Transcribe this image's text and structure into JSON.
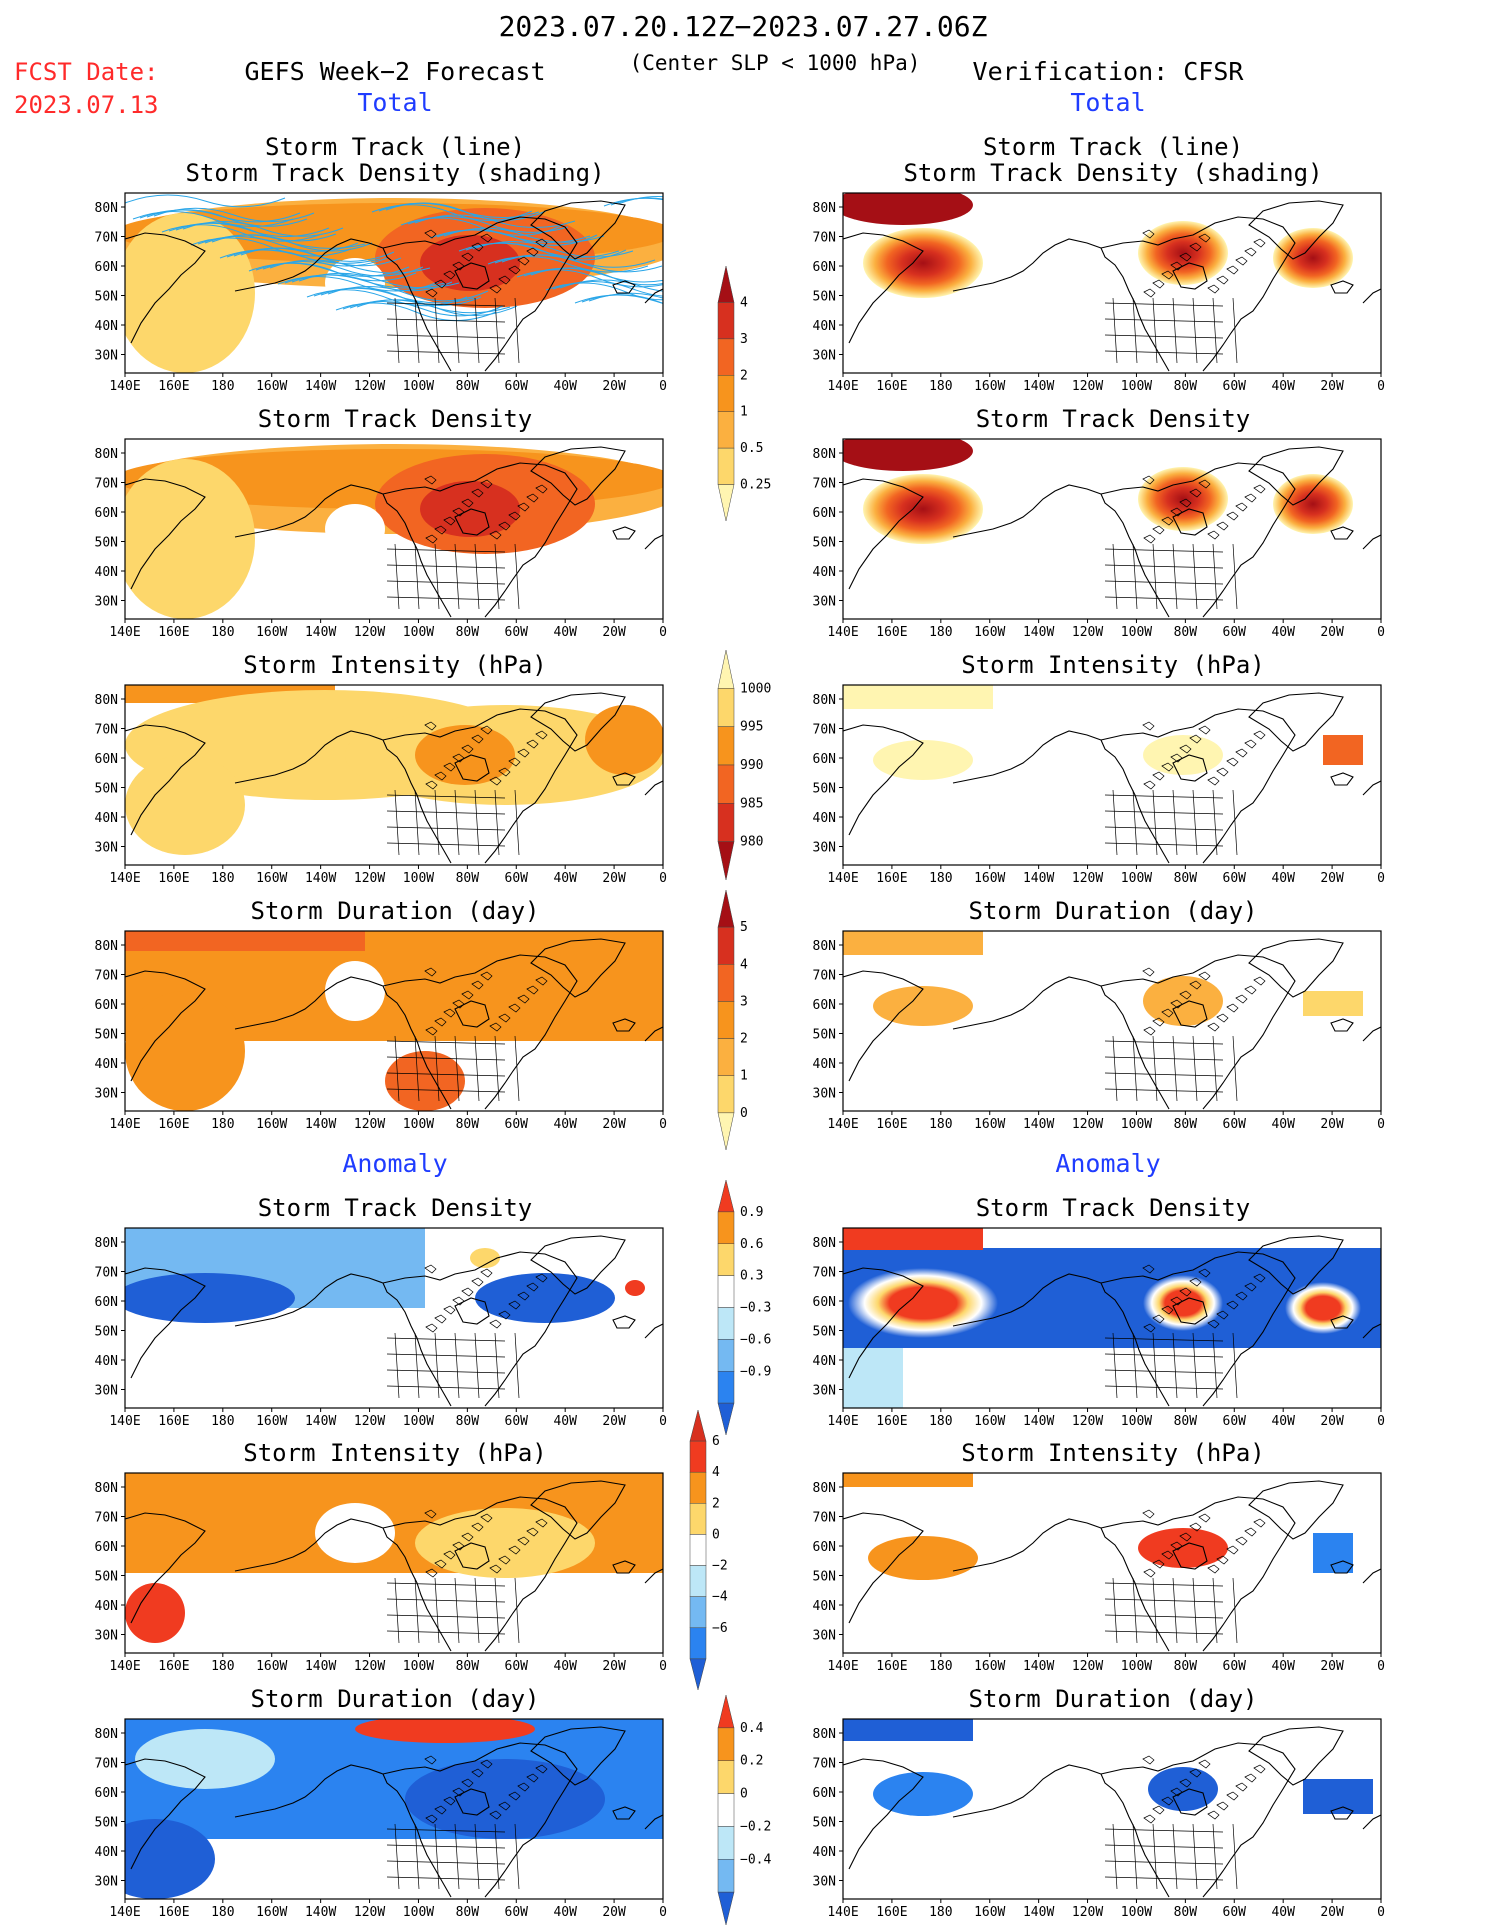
{
  "header": {
    "period": "2023.07.20.12Z−2023.07.27.06Z",
    "criterion": "(Center SLP < 1000 hPa)",
    "fcst_label": "FCST Date:",
    "fcst_date": "2023.07.13",
    "forecast_title": "GEFS Week−2 Forecast",
    "verification_title": "Verification: CFSR",
    "total_label": "Total",
    "anomaly_label": "Anomaly"
  },
  "panel_titles": {
    "track_line": "Storm Track (line)",
    "track_density_shading": "Storm Track Density (shading)",
    "density": "Storm Track Density",
    "intensity": "Storm Intensity (hPa)",
    "duration": "Storm Duration (day)"
  },
  "axes": {
    "lon_labels": [
      "140E",
      "160E",
      "180",
      "160W",
      "140W",
      "120W",
      "100W",
      "80W",
      "60W",
      "40W",
      "20W",
      "0"
    ],
    "lat_labels": [
      "80N",
      "70N",
      "60N",
      "50N",
      "40N",
      "30N"
    ]
  },
  "colorbars": {
    "density_total": {
      "labels": [
        "4",
        "3",
        "2",
        "1",
        "0.5",
        "0.25"
      ],
      "colors": [
        "#a50f15",
        "#d7301f",
        "#f26522",
        "#f7941d",
        "#fbb040",
        "#fdd76b",
        "#fff5b1"
      ]
    },
    "intensity_total": {
      "labels": [
        "1000",
        "995",
        "990",
        "985",
        "980"
      ],
      "colors": [
        "#fff5b1",
        "#fdd76b",
        "#f7941d",
        "#f26522",
        "#d7301f",
        "#a50f15"
      ]
    },
    "duration_total": {
      "labels": [
        "5",
        "4",
        "3",
        "2",
        "1",
        "0"
      ],
      "colors": [
        "#a50f15",
        "#d7301f",
        "#f26522",
        "#f7941d",
        "#fbb040",
        "#fdd76b",
        "#fff5b1"
      ]
    },
    "density_anom": {
      "labels": [
        "0.9",
        "0.6",
        "0.3",
        "−0.3",
        "−0.6",
        "−0.9"
      ],
      "colors": [
        "#f03b20",
        "#f7941d",
        "#fdd76b",
        "#ffffff",
        "#bde7f7",
        "#74b9f2",
        "#2b83f0",
        "#1f5fd6"
      ]
    },
    "intensity_anom": {
      "labels": [
        "6",
        "4",
        "2",
        "0",
        "−2",
        "−4",
        "−6"
      ],
      "colors": [
        "#d7301f",
        "#f03b20",
        "#f7941d",
        "#fdd76b",
        "#ffffff",
        "#bde7f7",
        "#74b9f2",
        "#2b83f0",
        "#1f5fd6"
      ]
    },
    "duration_anom": {
      "labels": [
        "0.4",
        "0.2",
        "0",
        "−0.2",
        "−0.4"
      ],
      "colors": [
        "#f03b20",
        "#f7941d",
        "#fdd76b",
        "#ffffff",
        "#bde7f7",
        "#74b9f2",
        "#1f5fd6"
      ]
    }
  },
  "colors": {
    "title_red": "#ff2a2a",
    "title_blue": "#1f3cff",
    "track_blue": "#2aa6e8",
    "land_line": "#000000"
  }
}
